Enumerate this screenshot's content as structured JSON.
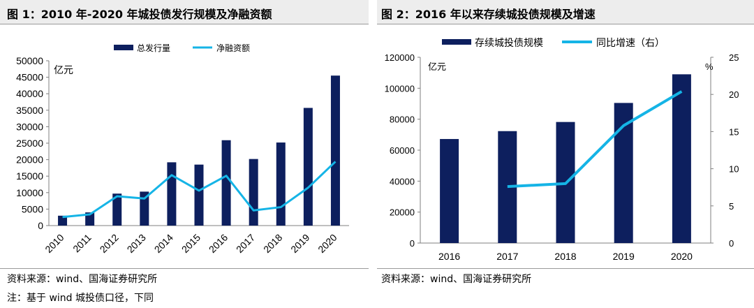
{
  "left_panel": {
    "heading": "图 1：2010 年-2020 年城投债发行规模及净融资额",
    "source": "资料来源：wind、国海证券研究所",
    "footnote": "注：基于 wind 城投债口径，下同"
  },
  "right_panel": {
    "heading": "图 2：2016 年以来存续城投债规模及增速",
    "source": "资料来源：wind、国海证券研究所"
  },
  "colors": {
    "bar": "#0d1f5e",
    "line": "#15b4e6",
    "header_bg": "#ededed"
  },
  "chart_data": [
    {
      "type": "bar",
      "unit_label": "亿元",
      "categories": [
        "2010",
        "2011",
        "2012",
        "2013",
        "2014",
        "2015",
        "2016",
        "2017",
        "2018",
        "2019",
        "2020"
      ],
      "ylim": [
        0,
        50000
      ],
      "yticks": [
        0,
        5000,
        10000,
        15000,
        20000,
        25000,
        30000,
        35000,
        40000,
        45000,
        50000
      ],
      "legend_position": "top",
      "series": [
        {
          "name": "总发行量",
          "kind": "bar",
          "values": [
            3000,
            4000,
            9700,
            10300,
            19200,
            18500,
            25900,
            20200,
            25200,
            35700,
            45500
          ]
        },
        {
          "name": "净融资额",
          "kind": "line",
          "values": [
            2600,
            3400,
            8900,
            8200,
            15300,
            10600,
            15100,
            4600,
            5600,
            11500,
            19400
          ]
        }
      ]
    },
    {
      "type": "bar",
      "unit_label": "亿元",
      "right_unit_label": "%",
      "categories": [
        "2016",
        "2017",
        "2018",
        "2019",
        "2020"
      ],
      "ylim": [
        0,
        120000
      ],
      "yticks": [
        0,
        20000,
        40000,
        60000,
        80000,
        100000,
        120000
      ],
      "y2lim": [
        0,
        25
      ],
      "y2ticks": [
        0,
        5,
        10,
        15,
        20,
        25
      ],
      "legend_position": "top",
      "series": [
        {
          "name": "存续城投债规模",
          "kind": "bar",
          "axis": "left",
          "values": [
            67200,
            72300,
            78200,
            90500,
            109000
          ]
        },
        {
          "name": "同比增速（右）",
          "kind": "line",
          "axis": "right",
          "values": [
            null,
            7.6,
            8.0,
            15.8,
            20.4
          ]
        }
      ]
    }
  ]
}
